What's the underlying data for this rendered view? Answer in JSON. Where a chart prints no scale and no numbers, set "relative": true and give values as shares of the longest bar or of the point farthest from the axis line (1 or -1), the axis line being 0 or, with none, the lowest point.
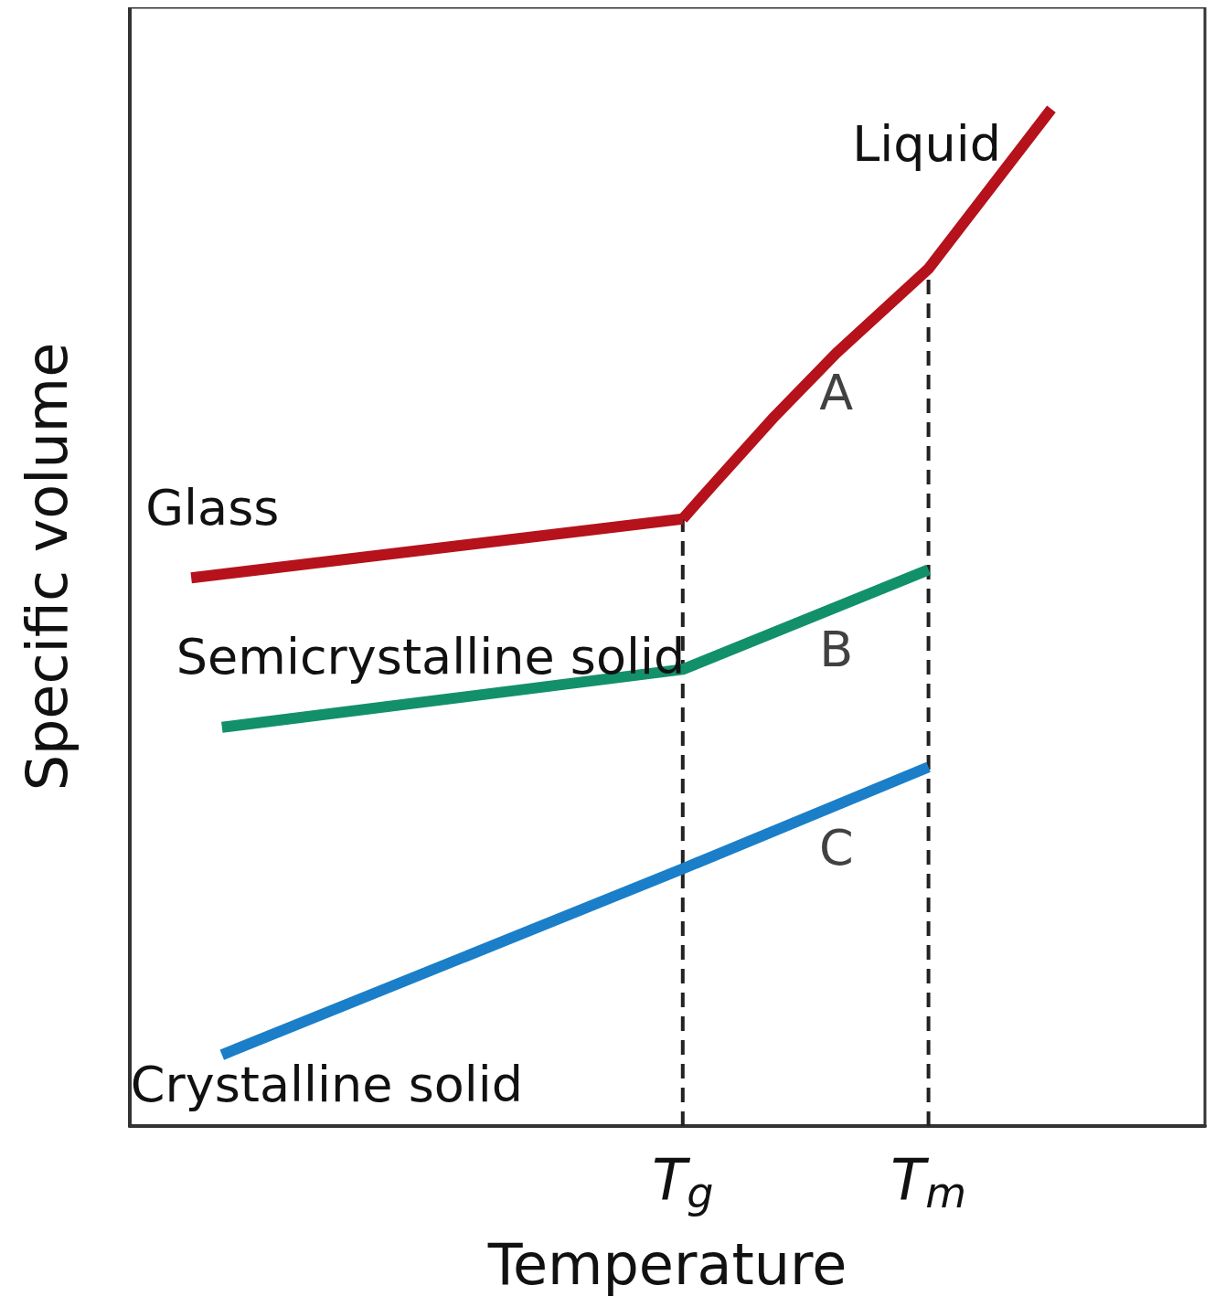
{
  "chart_data": {
    "type": "line",
    "relative": true,
    "xlabel": "Temperature",
    "ylabel": "Specific volume",
    "categories": [
      null,
      null,
      null,
      null,
      null,
      null,
      null,
      null,
      null,
      null,
      null,
      null,
      null,
      null,
      null,
      null,
      null,
      null,
      "T$_{g}$",
      null,
      null,
      null,
      null,
      null,
      null,
      null,
      "T$_{m}$",
      null,
      null,
      null,
      null,
      null,
      null,
      null,
      null,
      null
    ],
    "series": [
      {
        "name": "Glass",
        "color": "#b5121b",
        "values": [
          null,
          null,
          0.539,
          null,
          null,
          null,
          null,
          null,
          null,
          null,
          null,
          null,
          null,
          null,
          null,
          null,
          null,
          null,
          0.597,
          null,
          null,
          null,
          null,
          null,
          null,
          null,
          null,
          null,
          null,
          null,
          null,
          null,
          null,
          null,
          null,
          null
        ]
      },
      {
        "name": "Liquid",
        "color": "#b5121b",
        "values": [
          null,
          null,
          null,
          null,
          null,
          null,
          null,
          null,
          null,
          null,
          null,
          null,
          null,
          null,
          null,
          null,
          null,
          null,
          0.597,
          0.631,
          null,
          0.698,
          null,
          0.76,
          null,
          null,
          0.843,
          null,
          null,
          null,
          1,
          null,
          null,
          null,
          null,
          null
        ]
      },
      {
        "name": "Semicrystalline solid",
        "color": "#12906a",
        "values": [
          null,
          null,
          null,
          0.392,
          null,
          null,
          null,
          null,
          null,
          null,
          null,
          null,
          null,
          null,
          null,
          null,
          null,
          null,
          0.449,
          null,
          null,
          null,
          null,
          null,
          null,
          null,
          0.547,
          null,
          null,
          null,
          null,
          null,
          null,
          null,
          null,
          null
        ]
      },
      {
        "name": "Crystalline solid",
        "color": "#1a7fc8",
        "values": [
          null,
          null,
          null,
          0.07,
          null,
          null,
          null,
          null,
          null,
          null,
          null,
          null,
          null,
          null,
          null,
          null,
          null,
          null,
          0.253,
          null,
          null,
          null,
          null,
          null,
          null,
          null,
          0.353,
          null,
          null,
          null,
          null,
          null,
          null,
          null,
          null,
          null
        ]
      }
    ],
    "ref_lines": [
      {
        "axis": "x",
        "value": "T$_{g}$",
        "color": "#222222",
        "line_style": "dashed"
      },
      {
        "axis": "x",
        "value": "T$_{m}$",
        "color": "#222222",
        "line_style": "dashed"
      }
    ],
    "annotations": [
      "A",
      "B",
      "C"
    ],
    "grid": false,
    "marker": "none",
    "line_style": "solid"
  }
}
